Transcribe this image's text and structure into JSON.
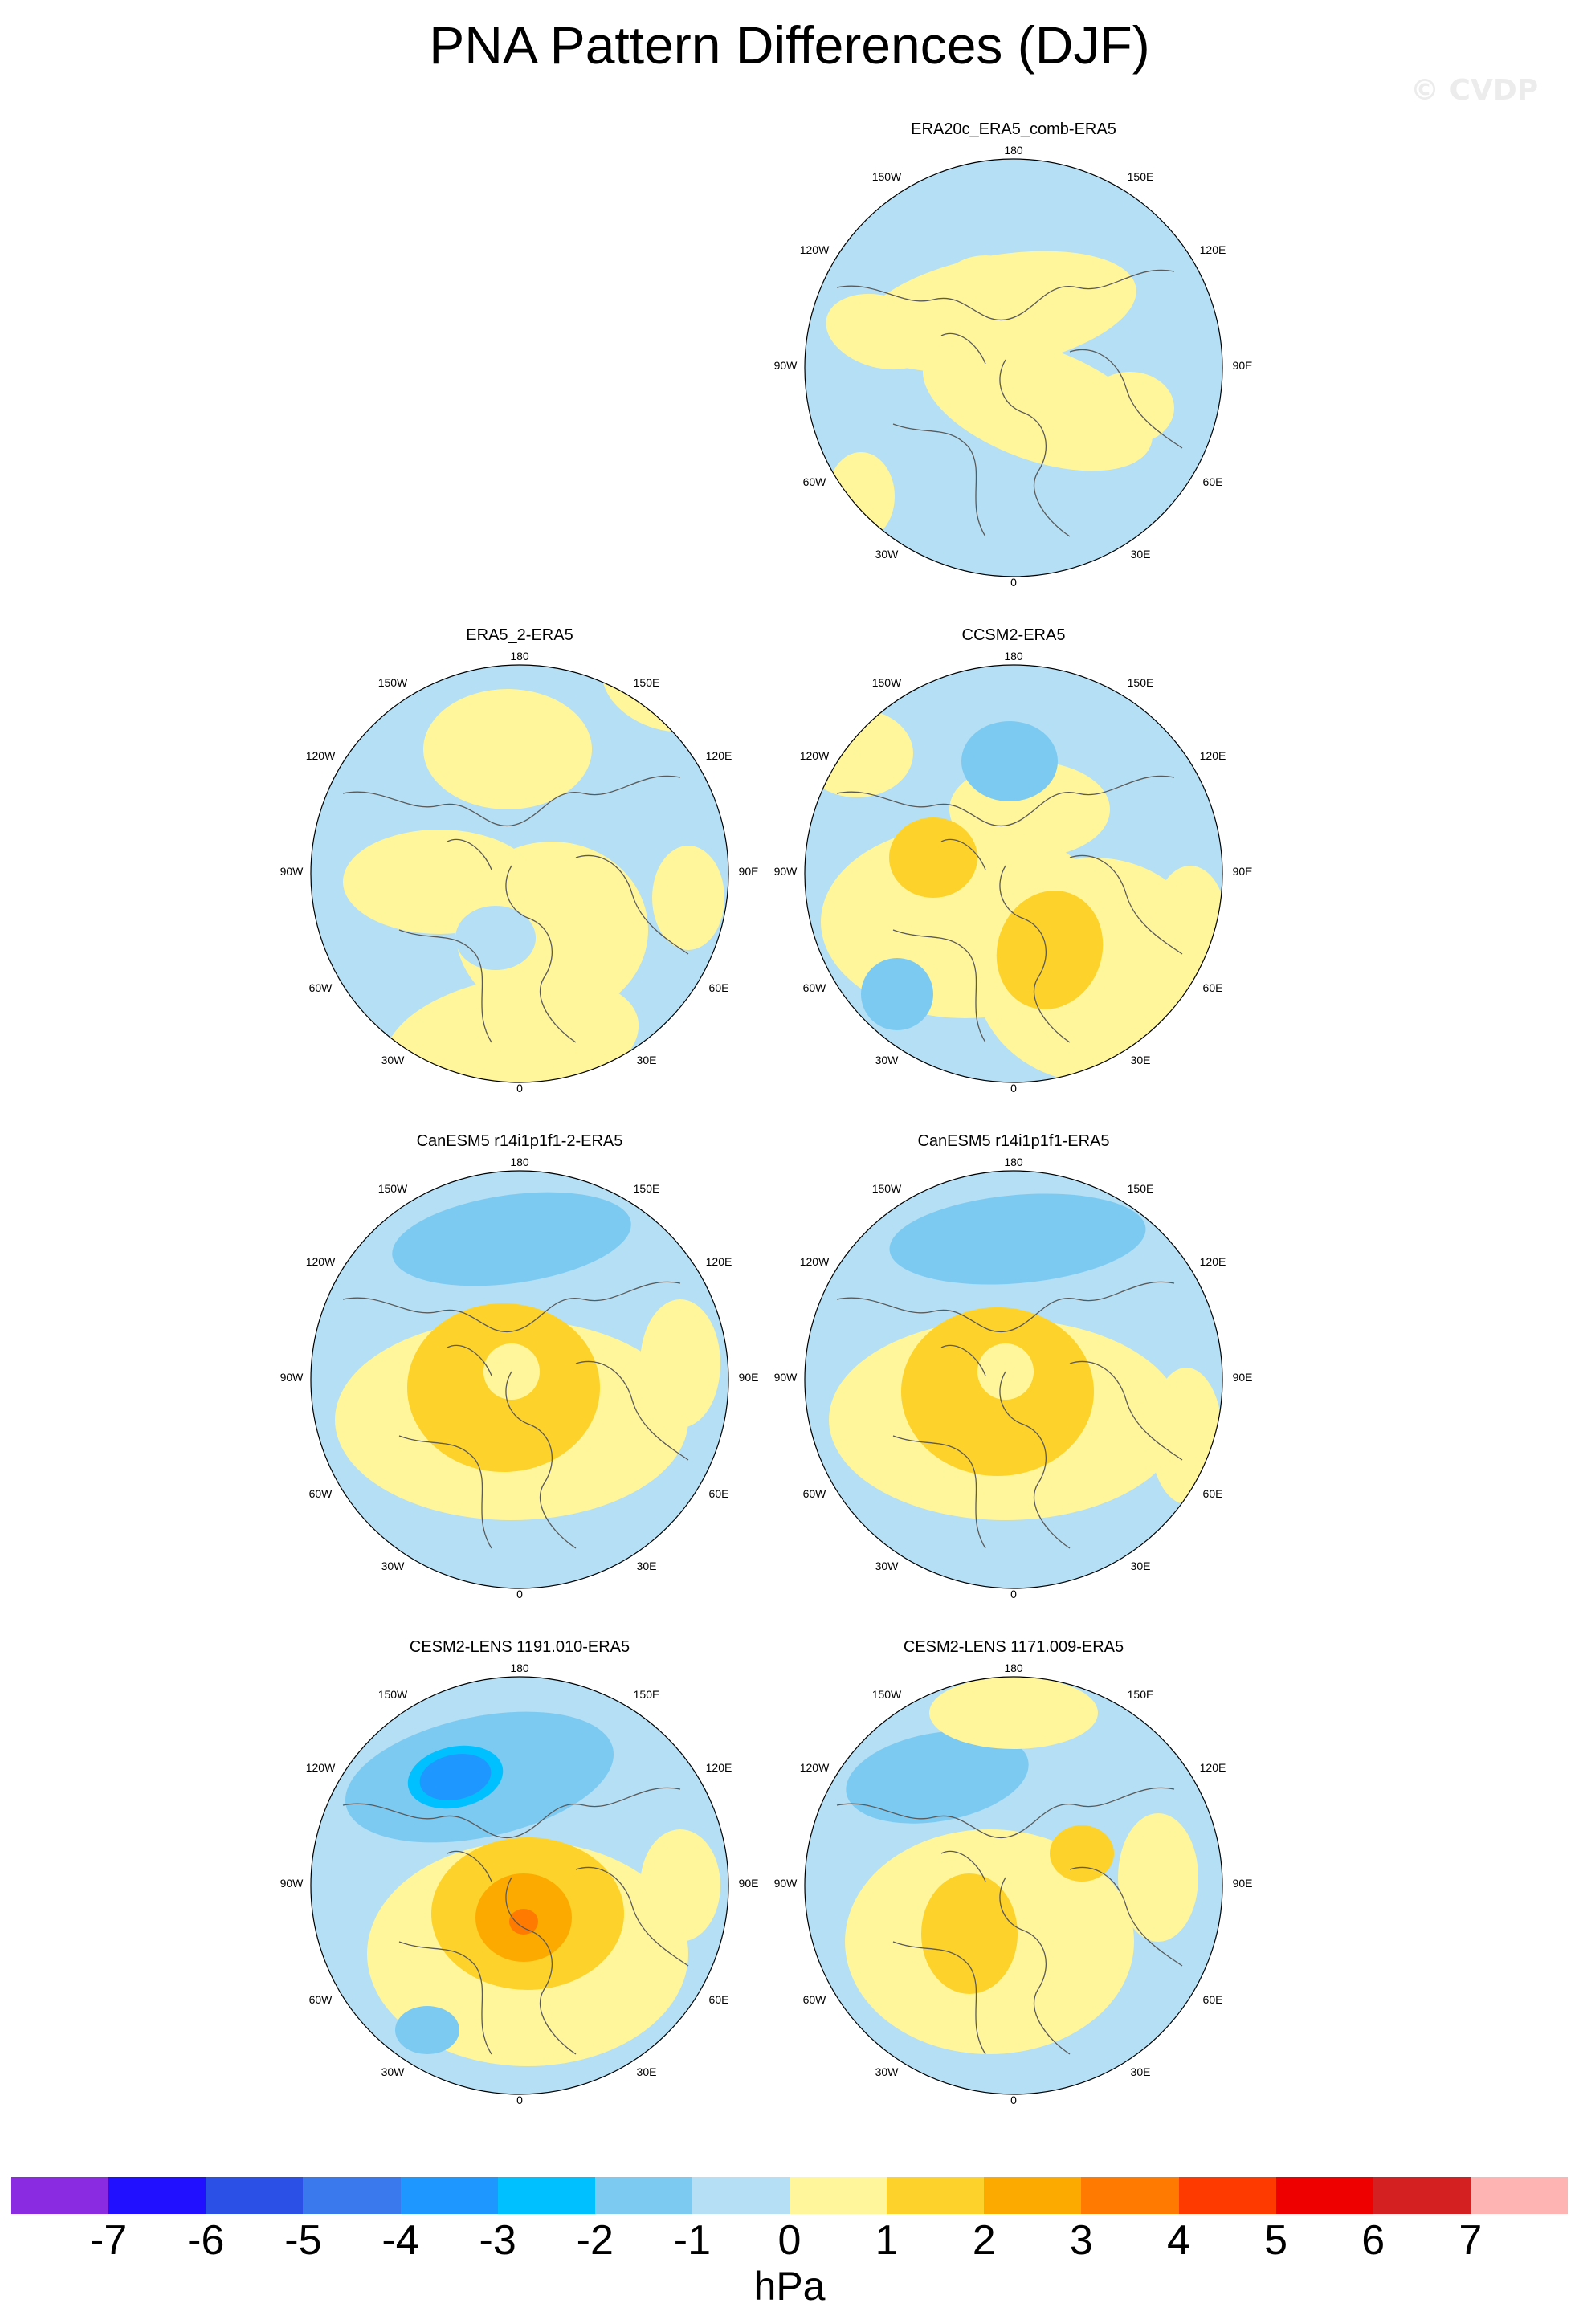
{
  "figure": {
    "title": "PNA Pattern Differences (DJF)",
    "watermark": "© CVDP"
  },
  "axis_labels": {
    "top": "180",
    "bottom": "0",
    "left": "90W",
    "right": "90E",
    "upper_left_outer": "150W",
    "upper_left_inner": "120W",
    "lower_left_inner": "60W",
    "lower_left_outer": "30W",
    "upper_right_outer": "150E",
    "upper_right_inner": "120E",
    "lower_right_inner": "60E",
    "lower_right_outer": "30E"
  },
  "panels": [
    {
      "title": "ERA20c_ERA5_comb-ERA5",
      "pattern": "era20c"
    },
    {
      "title": "ERA5_2-ERA5",
      "pattern": "era5_2"
    },
    {
      "title": "CCSM2-ERA5",
      "pattern": "ccsm2"
    },
    {
      "title": "CanESM5 r14i1p1f1-2-ERA5",
      "pattern": "canesm_a"
    },
    {
      "title": "CanESM5 r14i1p1f1-ERA5",
      "pattern": "canesm_b"
    },
    {
      "title": "CESM2-LENS 1191.010-ERA5",
      "pattern": "cesm_a"
    },
    {
      "title": "CESM2-LENS 1171.009-ERA5",
      "pattern": "cesm_b"
    }
  ],
  "colorbar": {
    "colors": [
      "#8a2be2",
      "#2010ff",
      "#2b50e6",
      "#3a78ee",
      "#1e98ff",
      "#00c0ff",
      "#7ccaf2",
      "#b4dff4",
      "#fff59b",
      "#fdd22a",
      "#fdaa00",
      "#ff7a00",
      "#ff3a00",
      "#ee0000",
      "#d42020",
      "#ffb4b4"
    ],
    "labels": [
      "-7",
      "-6",
      "-5",
      "-4",
      "-3",
      "-2",
      "-1",
      "0",
      "1",
      "2",
      "3",
      "4",
      "5",
      "6",
      "7"
    ],
    "units": "hPa"
  }
}
